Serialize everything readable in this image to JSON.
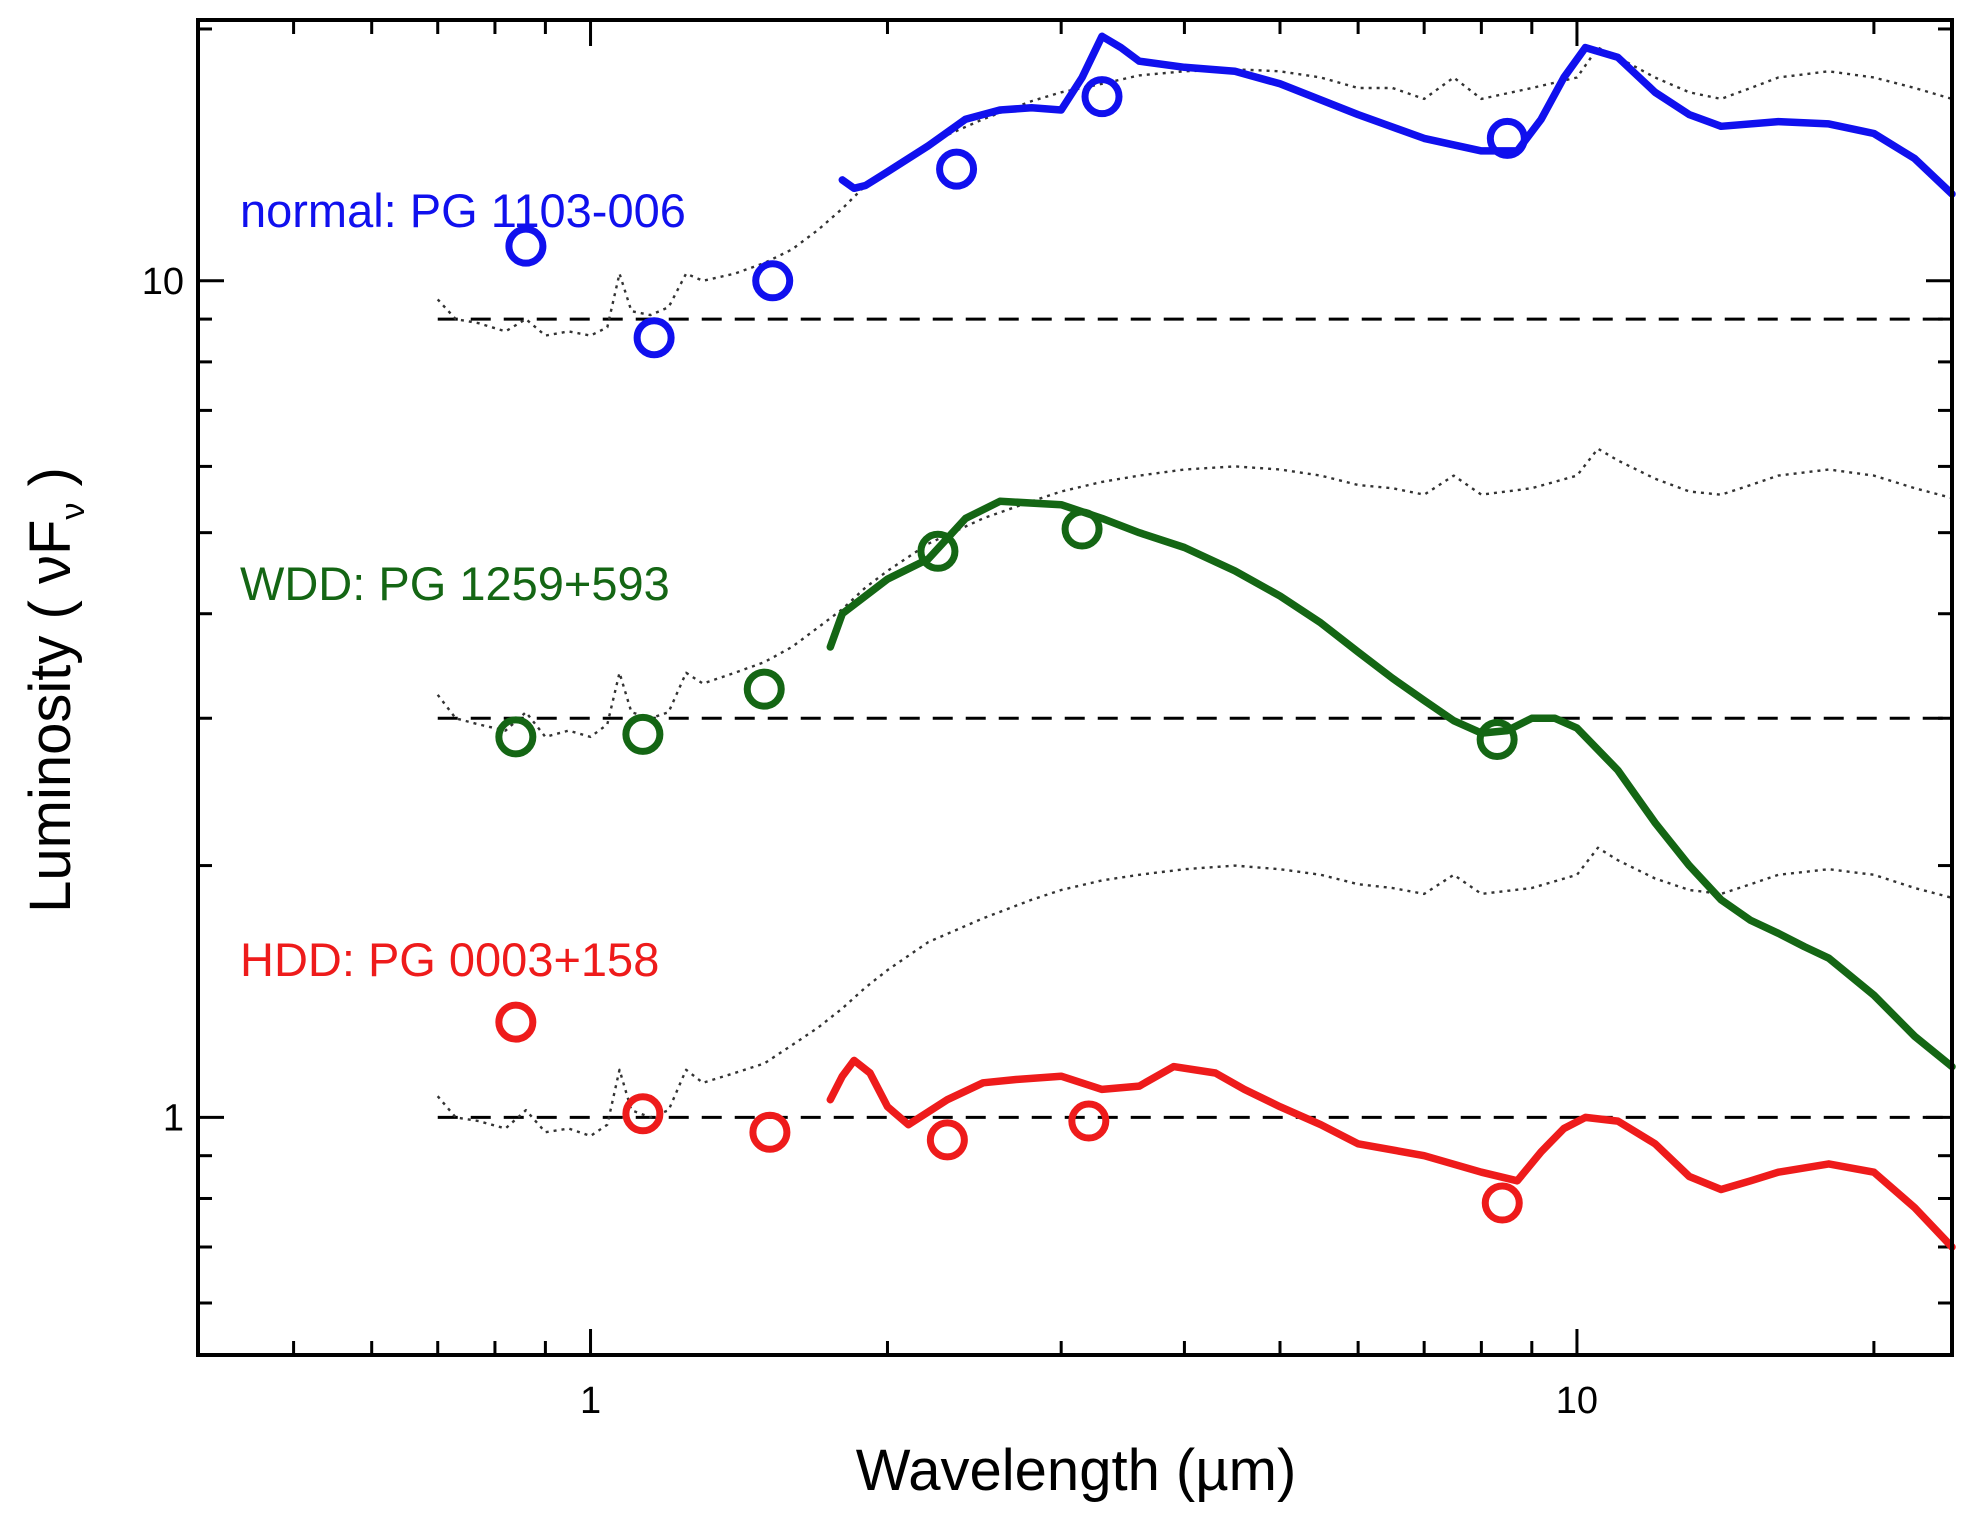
{
  "chart_data": {
    "type": "line",
    "title": "",
    "xlabel": "Wavelength (µm)",
    "ylabel": {
      "main": "Luminosity ( ",
      "nu": "ν",
      "F": "F",
      "sub": "ν",
      "close": " )"
    },
    "xscale": "log",
    "yscale": "log",
    "xlim": [
      0.4,
      24
    ],
    "ylim": [
      0.52,
      20.5
    ],
    "x_tick_labels": [
      {
        "value": 1,
        "label": "1"
      },
      {
        "value": 10,
        "label": "10"
      }
    ],
    "y_tick_labels": [
      {
        "value": 1,
        "label": "1"
      },
      {
        "value": 10,
        "label": "10"
      }
    ],
    "x_minor_ticks": [
      0.5,
      0.6,
      0.7,
      0.8,
      0.9,
      2,
      3,
      4,
      5,
      6,
      7,
      8,
      9,
      20
    ],
    "y_minor_ticks": [
      0.6,
      0.7,
      0.8,
      0.9,
      2,
      3,
      4,
      5,
      6,
      7,
      8,
      9,
      20
    ],
    "colors": {
      "normal": "#1010ee",
      "wdd": "#146614",
      "hdd": "#ee1b1b",
      "template": "#333333",
      "axis": "#000000"
    },
    "series": [
      {
        "key": "normal",
        "name": "normal: PG 1103-006",
        "color": "#1010ee",
        "baseline": 9.0,
        "spectrum": [
          [
            1.8,
            13.2
          ],
          [
            1.85,
            12.9
          ],
          [
            1.9,
            13.0
          ],
          [
            2.0,
            13.5
          ],
          [
            2.2,
            14.5
          ],
          [
            2.4,
            15.6
          ],
          [
            2.6,
            16.0
          ],
          [
            2.8,
            16.1
          ],
          [
            3.0,
            16.0
          ],
          [
            3.15,
            17.5
          ],
          [
            3.3,
            19.6
          ],
          [
            3.45,
            19.0
          ],
          [
            3.6,
            18.3
          ],
          [
            4.0,
            18.0
          ],
          [
            4.5,
            17.8
          ],
          [
            5.0,
            17.2
          ],
          [
            6.0,
            15.8
          ],
          [
            7.0,
            14.8
          ],
          [
            8.0,
            14.3
          ],
          [
            8.7,
            14.3
          ],
          [
            9.2,
            15.6
          ],
          [
            9.7,
            17.5
          ],
          [
            10.2,
            19.0
          ],
          [
            11.0,
            18.5
          ],
          [
            12.0,
            16.8
          ],
          [
            13.0,
            15.8
          ],
          [
            14.0,
            15.3
          ],
          [
            16.0,
            15.5
          ],
          [
            18.0,
            15.4
          ],
          [
            20.0,
            15.0
          ],
          [
            22.0,
            14.0
          ],
          [
            24.0,
            12.7
          ]
        ],
        "template": [
          [
            0.7,
            9.5
          ],
          [
            0.73,
            9.0
          ],
          [
            0.77,
            8.9
          ],
          [
            0.82,
            8.7
          ],
          [
            0.86,
            9.0
          ],
          [
            0.9,
            8.6
          ],
          [
            0.95,
            8.7
          ],
          [
            1.0,
            8.6
          ],
          [
            1.04,
            8.8
          ],
          [
            1.07,
            10.2
          ],
          [
            1.1,
            9.2
          ],
          [
            1.15,
            9.1
          ],
          [
            1.2,
            9.3
          ],
          [
            1.25,
            10.2
          ],
          [
            1.3,
            10.0
          ],
          [
            1.4,
            10.2
          ],
          [
            1.5,
            10.5
          ],
          [
            1.6,
            10.9
          ],
          [
            1.7,
            11.5
          ],
          [
            1.8,
            12.2
          ],
          [
            1.9,
            13.0
          ],
          [
            2.0,
            13.6
          ],
          [
            2.2,
            14.6
          ],
          [
            2.5,
            15.6
          ],
          [
            2.8,
            16.4
          ],
          [
            3.0,
            16.8
          ],
          [
            3.3,
            17.2
          ],
          [
            3.6,
            17.6
          ],
          [
            4.0,
            17.8
          ],
          [
            4.5,
            17.9
          ],
          [
            5.0,
            17.8
          ],
          [
            5.5,
            17.5
          ],
          [
            6.0,
            17.0
          ],
          [
            6.5,
            17.0
          ],
          [
            7.0,
            16.5
          ],
          [
            7.5,
            17.5
          ],
          [
            8.0,
            16.5
          ],
          [
            9.0,
            17.0
          ],
          [
            10.0,
            17.5
          ],
          [
            10.5,
            19.0
          ],
          [
            11.0,
            18.5
          ],
          [
            12.0,
            17.5
          ],
          [
            13.0,
            16.8
          ],
          [
            14.0,
            16.5
          ],
          [
            15.0,
            17.0
          ],
          [
            16.0,
            17.5
          ],
          [
            18.0,
            17.8
          ],
          [
            20.0,
            17.5
          ],
          [
            22.0,
            17.0
          ],
          [
            24.0,
            16.5
          ]
        ],
        "photometry": [
          [
            0.86,
            11.0
          ],
          [
            1.16,
            8.55
          ],
          [
            1.53,
            10.0
          ],
          [
            2.35,
            13.6
          ],
          [
            3.3,
            16.6
          ],
          [
            8.5,
            14.8
          ]
        ]
      },
      {
        "key": "wdd",
        "name": "WDD: PG 1259+593",
        "color": "#146614",
        "baseline": 3.0,
        "spectrum": [
          [
            1.75,
            3.65
          ],
          [
            1.8,
            4.0
          ],
          [
            2.0,
            4.4
          ],
          [
            2.2,
            4.65
          ],
          [
            2.4,
            5.2
          ],
          [
            2.6,
            5.45
          ],
          [
            3.0,
            5.4
          ],
          [
            3.3,
            5.2
          ],
          [
            3.6,
            5.0
          ],
          [
            4.0,
            4.8
          ],
          [
            4.5,
            4.5
          ],
          [
            5.0,
            4.2
          ],
          [
            5.5,
            3.9
          ],
          [
            6.0,
            3.6
          ],
          [
            6.5,
            3.35
          ],
          [
            7.0,
            3.15
          ],
          [
            7.5,
            2.98
          ],
          [
            8.0,
            2.88
          ],
          [
            8.5,
            2.9
          ],
          [
            9.0,
            3.0
          ],
          [
            9.5,
            3.0
          ],
          [
            10.0,
            2.92
          ],
          [
            11.0,
            2.6
          ],
          [
            12.0,
            2.25
          ],
          [
            13.0,
            2.0
          ],
          [
            14.0,
            1.82
          ],
          [
            15.0,
            1.72
          ],
          [
            16.0,
            1.66
          ],
          [
            17.0,
            1.6
          ],
          [
            18.0,
            1.55
          ],
          [
            20.0,
            1.4
          ],
          [
            22.0,
            1.25
          ],
          [
            24.0,
            1.15
          ]
        ],
        "template": [
          [
            0.7,
            3.2
          ],
          [
            0.73,
            3.0
          ],
          [
            0.77,
            2.95
          ],
          [
            0.82,
            2.9
          ],
          [
            0.86,
            3.05
          ],
          [
            0.9,
            2.85
          ],
          [
            0.95,
            2.9
          ],
          [
            1.0,
            2.85
          ],
          [
            1.04,
            2.95
          ],
          [
            1.07,
            3.4
          ],
          [
            1.1,
            3.05
          ],
          [
            1.15,
            3.0
          ],
          [
            1.2,
            3.05
          ],
          [
            1.25,
            3.4
          ],
          [
            1.3,
            3.3
          ],
          [
            1.4,
            3.4
          ],
          [
            1.5,
            3.5
          ],
          [
            1.6,
            3.65
          ],
          [
            1.7,
            3.85
          ],
          [
            1.8,
            4.05
          ],
          [
            1.9,
            4.3
          ],
          [
            2.0,
            4.5
          ],
          [
            2.2,
            4.85
          ],
          [
            2.5,
            5.2
          ],
          [
            2.8,
            5.45
          ],
          [
            3.0,
            5.6
          ],
          [
            3.3,
            5.75
          ],
          [
            3.6,
            5.85
          ],
          [
            4.0,
            5.95
          ],
          [
            4.5,
            6.0
          ],
          [
            5.0,
            5.95
          ],
          [
            5.5,
            5.85
          ],
          [
            6.0,
            5.7
          ],
          [
            6.5,
            5.65
          ],
          [
            7.0,
            5.55
          ],
          [
            7.5,
            5.85
          ],
          [
            8.0,
            5.55
          ],
          [
            9.0,
            5.65
          ],
          [
            10.0,
            5.85
          ],
          [
            10.5,
            6.3
          ],
          [
            11.0,
            6.1
          ],
          [
            12.0,
            5.8
          ],
          [
            13.0,
            5.6
          ],
          [
            14.0,
            5.55
          ],
          [
            15.0,
            5.7
          ],
          [
            16.0,
            5.85
          ],
          [
            18.0,
            5.95
          ],
          [
            20.0,
            5.85
          ],
          [
            22.0,
            5.65
          ],
          [
            24.0,
            5.5
          ]
        ],
        "photometry": [
          [
            0.84,
            2.85
          ],
          [
            1.13,
            2.87
          ],
          [
            1.5,
            3.25
          ],
          [
            2.25,
            4.75
          ],
          [
            3.15,
            5.05
          ],
          [
            8.3,
            2.83
          ]
        ]
      },
      {
        "key": "hdd",
        "name": "HDD: PG 0003+158",
        "color": "#ee1b1b",
        "baseline": 1.0,
        "spectrum": [
          [
            1.75,
            1.05
          ],
          [
            1.8,
            1.12
          ],
          [
            1.85,
            1.17
          ],
          [
            1.92,
            1.13
          ],
          [
            2.0,
            1.03
          ],
          [
            2.1,
            0.98
          ],
          [
            2.3,
            1.05
          ],
          [
            2.5,
            1.1
          ],
          [
            2.7,
            1.11
          ],
          [
            3.0,
            1.12
          ],
          [
            3.3,
            1.08
          ],
          [
            3.6,
            1.09
          ],
          [
            3.9,
            1.15
          ],
          [
            4.3,
            1.13
          ],
          [
            4.6,
            1.08
          ],
          [
            5.0,
            1.03
          ],
          [
            5.5,
            0.98
          ],
          [
            6.0,
            0.93
          ],
          [
            7.0,
            0.9
          ],
          [
            8.0,
            0.86
          ],
          [
            8.7,
            0.84
          ],
          [
            9.2,
            0.91
          ],
          [
            9.7,
            0.97
          ],
          [
            10.2,
            1.0
          ],
          [
            11.0,
            0.99
          ],
          [
            12.0,
            0.93
          ],
          [
            13.0,
            0.85
          ],
          [
            14.0,
            0.82
          ],
          [
            15.0,
            0.84
          ],
          [
            16.0,
            0.86
          ],
          [
            18.0,
            0.88
          ],
          [
            20.0,
            0.86
          ],
          [
            22.0,
            0.78
          ],
          [
            24.0,
            0.7
          ]
        ],
        "template": [
          [
            0.7,
            1.06
          ],
          [
            0.73,
            1.0
          ],
          [
            0.77,
            0.99
          ],
          [
            0.82,
            0.97
          ],
          [
            0.86,
            1.02
          ],
          [
            0.9,
            0.96
          ],
          [
            0.95,
            0.97
          ],
          [
            1.0,
            0.95
          ],
          [
            1.04,
            0.98
          ],
          [
            1.07,
            1.14
          ],
          [
            1.1,
            1.02
          ],
          [
            1.15,
            1.0
          ],
          [
            1.2,
            1.02
          ],
          [
            1.25,
            1.14
          ],
          [
            1.3,
            1.1
          ],
          [
            1.4,
            1.13
          ],
          [
            1.5,
            1.16
          ],
          [
            1.6,
            1.22
          ],
          [
            1.7,
            1.28
          ],
          [
            1.8,
            1.35
          ],
          [
            1.9,
            1.43
          ],
          [
            2.0,
            1.5
          ],
          [
            2.2,
            1.62
          ],
          [
            2.5,
            1.73
          ],
          [
            2.8,
            1.82
          ],
          [
            3.0,
            1.87
          ],
          [
            3.3,
            1.92
          ],
          [
            3.6,
            1.95
          ],
          [
            4.0,
            1.98
          ],
          [
            4.5,
            2.0
          ],
          [
            5.0,
            1.98
          ],
          [
            5.5,
            1.95
          ],
          [
            6.0,
            1.9
          ],
          [
            6.5,
            1.88
          ],
          [
            7.0,
            1.85
          ],
          [
            7.5,
            1.95
          ],
          [
            8.0,
            1.85
          ],
          [
            9.0,
            1.88
          ],
          [
            10.0,
            1.95
          ],
          [
            10.5,
            2.1
          ],
          [
            11.0,
            2.03
          ],
          [
            12.0,
            1.93
          ],
          [
            13.0,
            1.87
          ],
          [
            14.0,
            1.85
          ],
          [
            15.0,
            1.9
          ],
          [
            16.0,
            1.95
          ],
          [
            18.0,
            1.98
          ],
          [
            20.0,
            1.95
          ],
          [
            22.0,
            1.88
          ],
          [
            24.0,
            1.83
          ]
        ],
        "photometry": [
          [
            0.84,
            1.3
          ],
          [
            1.13,
            1.01
          ],
          [
            1.52,
            0.96
          ],
          [
            2.3,
            0.94
          ],
          [
            3.2,
            0.99
          ],
          [
            8.4,
            0.79
          ]
        ]
      }
    ]
  }
}
